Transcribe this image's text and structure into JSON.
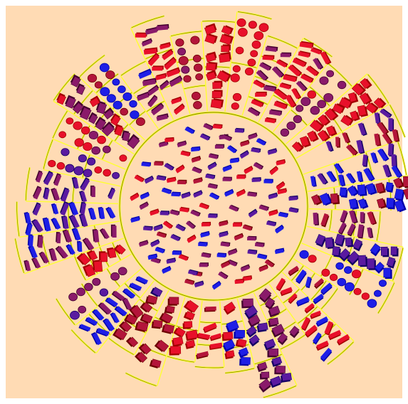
{
  "scene": {
    "background": "#ffdbb4",
    "frame_color": "#ffffff",
    "ring_stroke": "#ffff33",
    "ring_inner_stroke": "#808000",
    "glyph_colors": {
      "red": "#e8102a",
      "crimson": "#b3153a",
      "purple": "#8a1a6a",
      "blue": "#1e1ee6",
      "violet": "#5a1aa0"
    },
    "glyph_shapes": [
      "bar",
      "box",
      "sphere"
    ]
  }
}
